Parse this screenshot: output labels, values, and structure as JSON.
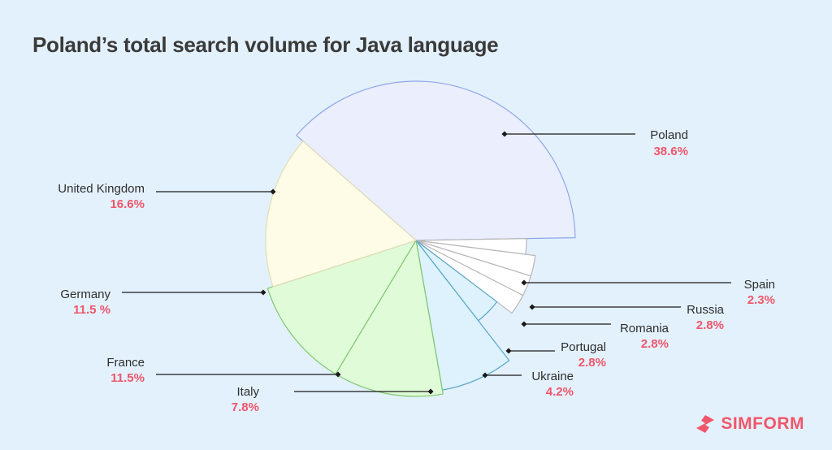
{
  "title": "Poland’s total search volume for Java language",
  "brand": {
    "name": "SIMFORM",
    "color": "#f0566a"
  },
  "colors": {
    "value_text": "#f0566a",
    "label_text": "#2e2e2e",
    "leader_line": "#1a1a1a"
  },
  "chart_data": {
    "type": "pie",
    "title": "Poland’s total search volume for Java language",
    "slices": [
      {
        "label": "Poland",
        "value_label": "38.6%",
        "value": 38.6,
        "color": "#eaeefd",
        "stroke": "#8fa6e6"
      },
      {
        "label": "Spain",
        "value_label": "2.3%",
        "value": 2.3,
        "color": "#ffffff",
        "stroke": "#b8b8b8"
      },
      {
        "label": "Russia",
        "value_label": "2.8%",
        "value": 2.8,
        "color": "#ffffff",
        "stroke": "#b8b8b8"
      },
      {
        "label": "Romania",
        "value_label": "2.8%",
        "value": 2.8,
        "color": "#ffffff",
        "stroke": "#b8b8b8"
      },
      {
        "label": "Portugal",
        "value_label": "2.8%",
        "value": 2.8,
        "color": "#ffffff",
        "stroke": "#b8b8b8"
      },
      {
        "label": "Ukraine",
        "value_label": "4.2%",
        "value": 4.2,
        "color": "#ddf2fc",
        "stroke": "#5aa6c8"
      },
      {
        "label": "Italy",
        "value_label": "7.8%",
        "value": 7.8,
        "color": "#ddf2fc",
        "stroke": "#5aa6c8"
      },
      {
        "label": "France",
        "value_label": "11.5%",
        "value": 11.5,
        "color": "#e0fbd8",
        "stroke": "#7ec86e"
      },
      {
        "label": "Germany",
        "value_label": "11.5 %",
        "value": 11.5,
        "color": "#e0fbd8",
        "stroke": "#7ec86e"
      },
      {
        "label": "United Kingdom",
        "value_label": "16.6%",
        "value": 16.6,
        "color": "#fefbe6",
        "stroke": "#e2ddb8"
      }
    ]
  }
}
